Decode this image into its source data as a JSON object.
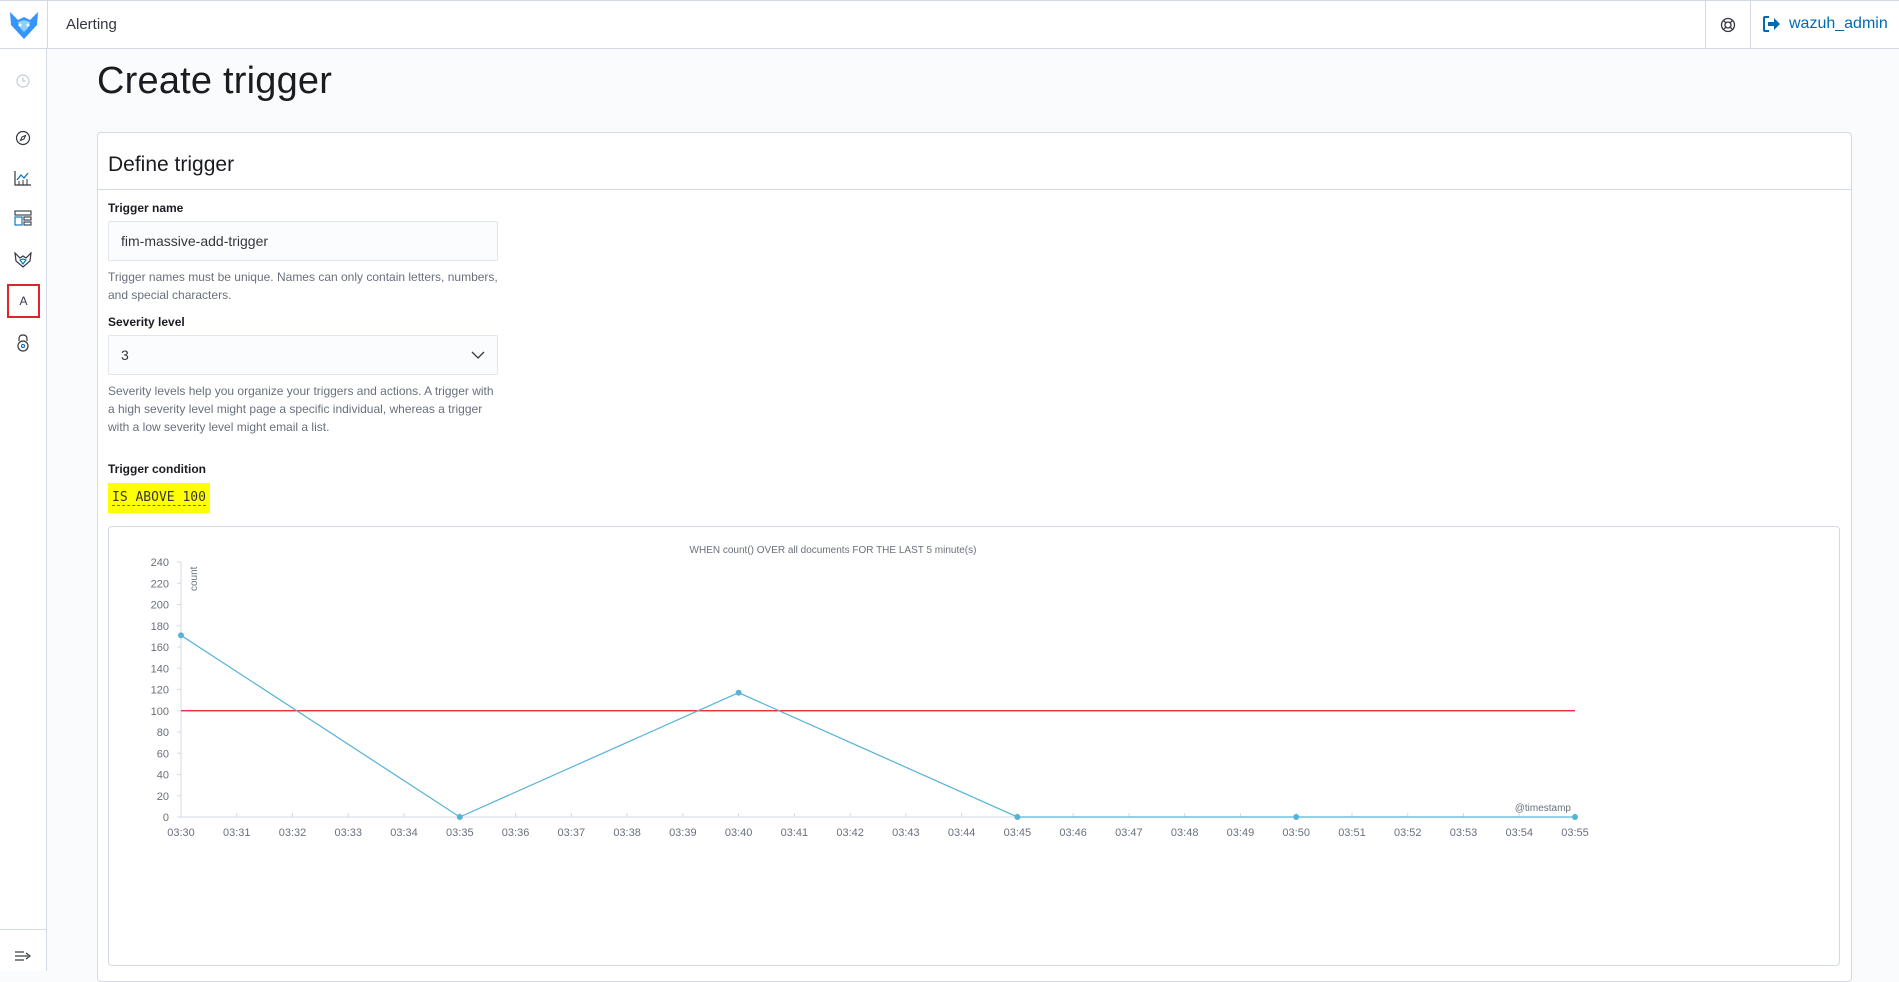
{
  "header": {
    "app_title": "Alerting",
    "user_name": "wazuh_admin",
    "icons": {
      "logo": "wazuh-wolf-logo",
      "help": "help-icon",
      "logout": "logout-icon"
    }
  },
  "sidenav": {
    "items": [
      {
        "name": "recent-icon"
      },
      {
        "name": "discover-icon"
      },
      {
        "name": "visualize-icon"
      },
      {
        "name": "dashboard-icon"
      },
      {
        "name": "wazuh-icon"
      },
      {
        "name": "alerting-icon",
        "letter": "A",
        "active": true
      },
      {
        "name": "security-icon"
      }
    ],
    "collapse_icon": "dock-collapse-icon"
  },
  "page": {
    "title": "Create trigger",
    "section_title": "Define trigger",
    "trigger_name": {
      "label": "Trigger name",
      "value": "fim-massive-add-trigger",
      "help": "Trigger names must be unique. Names can only contain letters, numbers, and special characters."
    },
    "severity": {
      "label": "Severity level",
      "value": "3",
      "help": "Severity levels help you organize your triggers and actions. A trigger with a high severity level might page a specific individual, whereas a trigger with a low severity level might email a list."
    },
    "condition": {
      "label": "Trigger condition",
      "value": "IS ABOVE 100"
    }
  },
  "chart_data": {
    "type": "line",
    "title": "WHEN count() OVER all documents FOR THE LAST 5 minute(s)",
    "xlabel": "@timestamp",
    "ylabel": "count",
    "ylim": [
      0,
      240
    ],
    "yticks": [
      "0",
      "20",
      "40",
      "60",
      "80",
      "100",
      "120",
      "140",
      "160",
      "180",
      "200",
      "220",
      "240"
    ],
    "x": [
      "03:30",
      "03:31",
      "03:32",
      "03:33",
      "03:34",
      "03:35",
      "03:36",
      "03:37",
      "03:38",
      "03:39",
      "03:40",
      "03:41",
      "03:42",
      "03:43",
      "03:44",
      "03:45",
      "03:46",
      "03:47",
      "03:48",
      "03:49",
      "03:50",
      "03:51",
      "03:52",
      "03:53",
      "03:54",
      "03:55"
    ],
    "series": [
      {
        "points": [
          {
            "x": "03:30",
            "y": 171
          },
          {
            "x": "03:35",
            "y": 0
          },
          {
            "x": "03:40",
            "y": 117
          },
          {
            "x": "03:45",
            "y": 0
          },
          {
            "x": "03:50",
            "y": 0
          },
          {
            "x": "03:55",
            "y": 0
          }
        ],
        "color": "#54b3d6"
      }
    ],
    "threshold": {
      "value": 100,
      "color": "#e7161a"
    },
    "grid": false
  }
}
